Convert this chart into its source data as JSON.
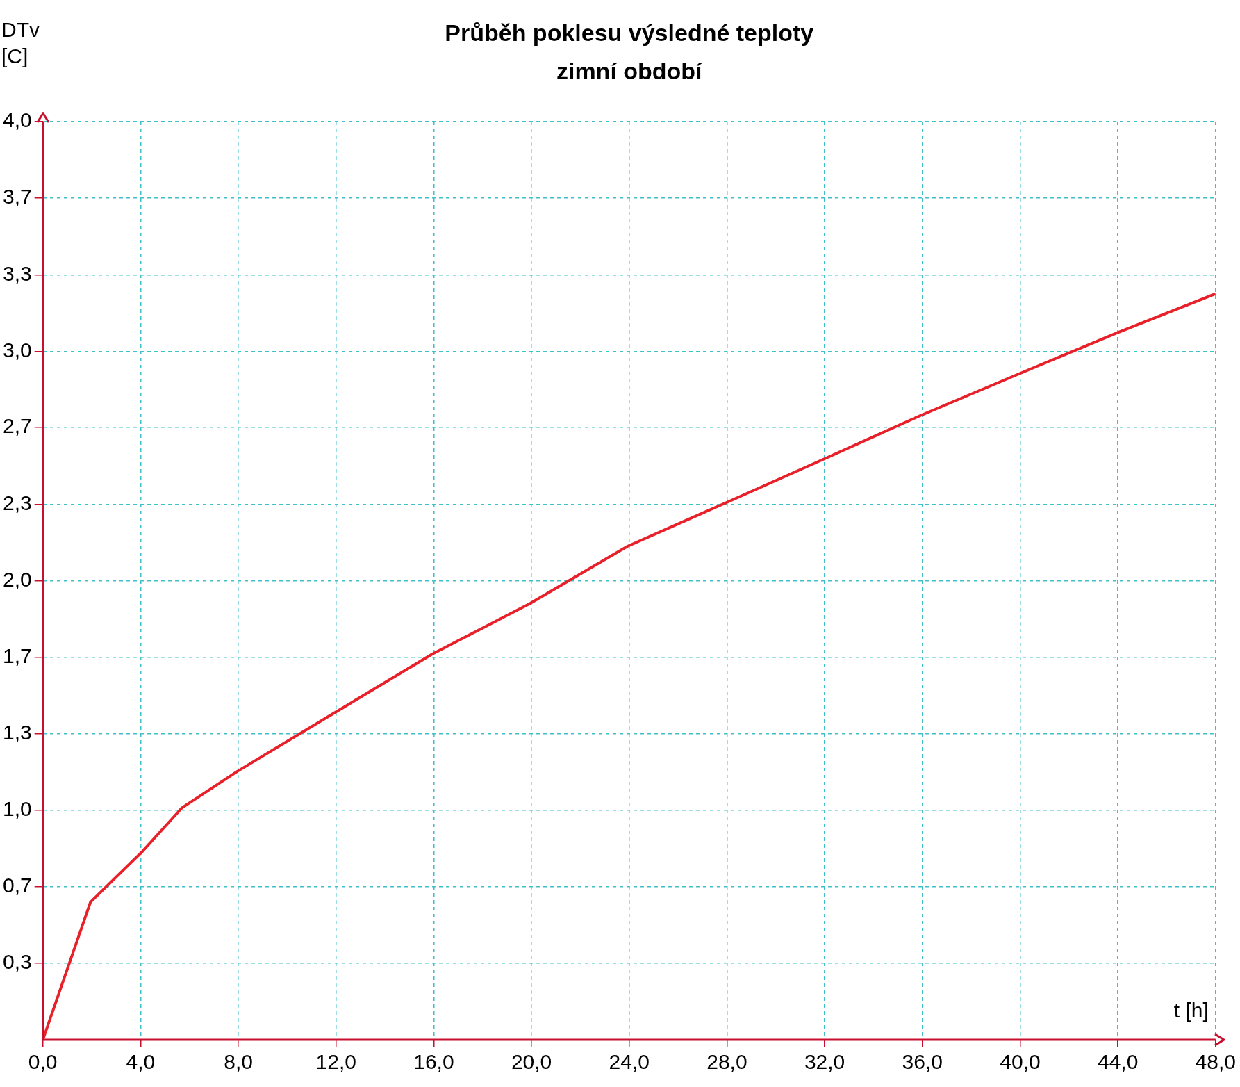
{
  "chart_data": {
    "type": "line",
    "title": "Průběh poklesu výsledné teploty",
    "subtitle": "zimní období",
    "xlabel": "t [h]",
    "ylabel": "DTv [C]",
    "x": [
      0,
      1.95,
      4.07,
      5.69,
      7.97,
      11.87,
      15.93,
      19.93,
      23.93,
      27.97,
      31.97,
      35.93,
      39.93,
      43.97,
      48
    ],
    "series": [
      {
        "color": "#e8202a",
        "values": [
          0,
          0.6,
          0.82,
          1.01,
          1.17,
          1.42,
          1.68,
          1.9,
          2.15,
          2.34,
          2.53,
          2.72,
          2.9,
          3.08,
          3.25
        ]
      }
    ],
    "xlim": [
      0,
      48
    ],
    "xticks": [
      {
        "value": 0,
        "label": "0,0"
      },
      {
        "value": 4,
        "label": "4,0"
      },
      {
        "value": 8,
        "label": "8,0"
      },
      {
        "value": 12,
        "label": "12,0"
      },
      {
        "value": 16,
        "label": "16,0"
      },
      {
        "value": 20,
        "label": "20,0"
      },
      {
        "value": 24,
        "label": "24,0"
      },
      {
        "value": 28,
        "label": "28,0"
      },
      {
        "value": 32,
        "label": "32,0"
      },
      {
        "value": 36,
        "label": "36,0"
      },
      {
        "value": 40,
        "label": "40,0"
      },
      {
        "value": 44,
        "label": "44,0"
      },
      {
        "value": 48,
        "label": "48,0"
      }
    ],
    "ylim": [
      0,
      4
    ],
    "yticks": [
      {
        "value": 0.333,
        "label": "0,3"
      },
      {
        "value": 0.667,
        "label": "0,7"
      },
      {
        "value": 1,
        "label": "1,0"
      },
      {
        "value": 1.333,
        "label": "1,3"
      },
      {
        "value": 1.667,
        "label": "1,7"
      },
      {
        "value": 2,
        "label": "2,0"
      },
      {
        "value": 2.333,
        "label": "2,3"
      },
      {
        "value": 2.667,
        "label": "2,7"
      },
      {
        "value": 3,
        "label": "3,0"
      },
      {
        "value": 3.333,
        "label": "3,3"
      },
      {
        "value": 3.667,
        "label": "3,7"
      },
      {
        "value": 4,
        "label": "4,0"
      }
    ],
    "grid": true,
    "legend": false,
    "marker": "none",
    "line_style": "solid"
  }
}
